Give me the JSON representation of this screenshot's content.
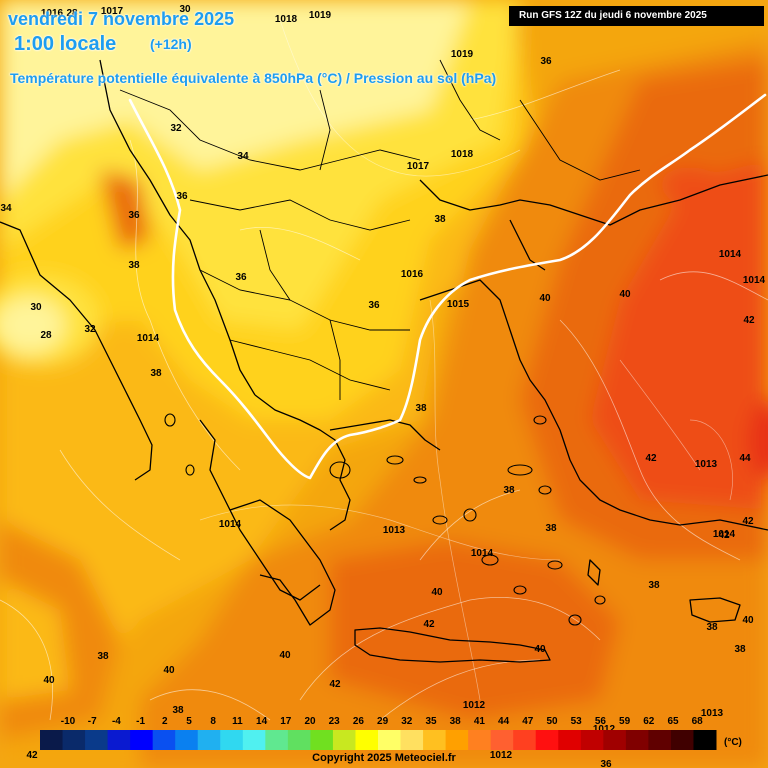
{
  "header": {
    "date": "vendredi 7 novembre 2025",
    "hour": "1:00 locale",
    "offset": "(+12h)",
    "parameter": "Température potentielle équivalente à 850hPa (°C) / Pression au sol (hPa)",
    "run": "Run GFS 12Z du jeudi 6 novembre 2025"
  },
  "colors": {
    "yellow_light": "#fff49a",
    "yellow": "#ffe23c",
    "yellow_orange": "#ffd21e",
    "gold": "#fbb914",
    "orange_light": "#f4a60c",
    "orange": "#f08a0a",
    "orange_dark": "#ea6a0a",
    "orange_red": "#ee4e12",
    "red": "#e83218",
    "front_line": "#ffffff",
    "coast_line": "#000000"
  },
  "isobar_labels": [
    {
      "text": "1016"
    },
    {
      "text": "1018"
    },
    {
      "text": "1019"
    },
    {
      "text": "1017"
    },
    {
      "text": "1019"
    },
    {
      "text": "1017"
    },
    {
      "text": "1018"
    },
    {
      "text": "1016"
    },
    {
      "text": "1015"
    },
    {
      "text": "1014"
    },
    {
      "text": "1014"
    },
    {
      "text": "1014"
    },
    {
      "text": "1014"
    },
    {
      "text": "1013"
    },
    {
      "text": "1013"
    },
    {
      "text": "1014"
    },
    {
      "text": "1014"
    },
    {
      "text": "1012"
    },
    {
      "text": "1012"
    },
    {
      "text": "1012"
    },
    {
      "text": "1013"
    }
  ],
  "temperature_labels": [
    {
      "text": "28"
    },
    {
      "text": "30"
    },
    {
      "text": "36"
    },
    {
      "text": "32"
    },
    {
      "text": "34"
    },
    {
      "text": "36"
    },
    {
      "text": "36"
    },
    {
      "text": "38"
    },
    {
      "text": "30"
    },
    {
      "text": "28"
    },
    {
      "text": "32"
    },
    {
      "text": "38"
    },
    {
      "text": "36"
    },
    {
      "text": "36"
    },
    {
      "text": "38"
    },
    {
      "text": "38"
    },
    {
      "text": "40"
    },
    {
      "text": "40"
    },
    {
      "text": "42"
    },
    {
      "text": "42"
    },
    {
      "text": "44"
    },
    {
      "text": "42"
    },
    {
      "text": "42"
    },
    {
      "text": "38"
    },
    {
      "text": "38"
    },
    {
      "text": "38"
    },
    {
      "text": "38"
    },
    {
      "text": "40"
    },
    {
      "text": "42"
    },
    {
      "text": "40"
    },
    {
      "text": "42"
    },
    {
      "text": "38"
    },
    {
      "text": "40"
    },
    {
      "text": "40"
    },
    {
      "text": "38"
    },
    {
      "text": "40"
    },
    {
      "text": "42"
    },
    {
      "text": "36"
    },
    {
      "text": "40"
    },
    {
      "text": "34"
    },
    {
      "text": "38"
    }
  ],
  "legend": {
    "ticks": [
      "-10",
      "-7",
      "-4",
      "-1",
      "2",
      "5",
      "8",
      "11",
      "14",
      "17",
      "20",
      "23",
      "26",
      "29",
      "32",
      "35",
      "38",
      "41",
      "44",
      "47",
      "50",
      "53",
      "56",
      "59",
      "62",
      "65",
      "68"
    ],
    "swatches": [
      "#0a1a4a",
      "#0a2a6a",
      "#0a3a8a",
      "#0a1ad0",
      "#0000ff",
      "#0a50f0",
      "#0a80f0",
      "#20b0f0",
      "#30d8f0",
      "#50f0f0",
      "#60e890",
      "#60e060",
      "#70e020",
      "#c8e820",
      "#ffff00",
      "#ffff66",
      "#ffe060",
      "#ffc020",
      "#ffa000",
      "#ff8020",
      "#ff6030",
      "#ff4020",
      "#ff1010",
      "#e00000",
      "#c00000",
      "#a00000",
      "#800000",
      "#600000",
      "#400000",
      "#000000"
    ],
    "unit": "(°C)"
  },
  "copyright": "Copyright 2025 Meteociel.fr"
}
